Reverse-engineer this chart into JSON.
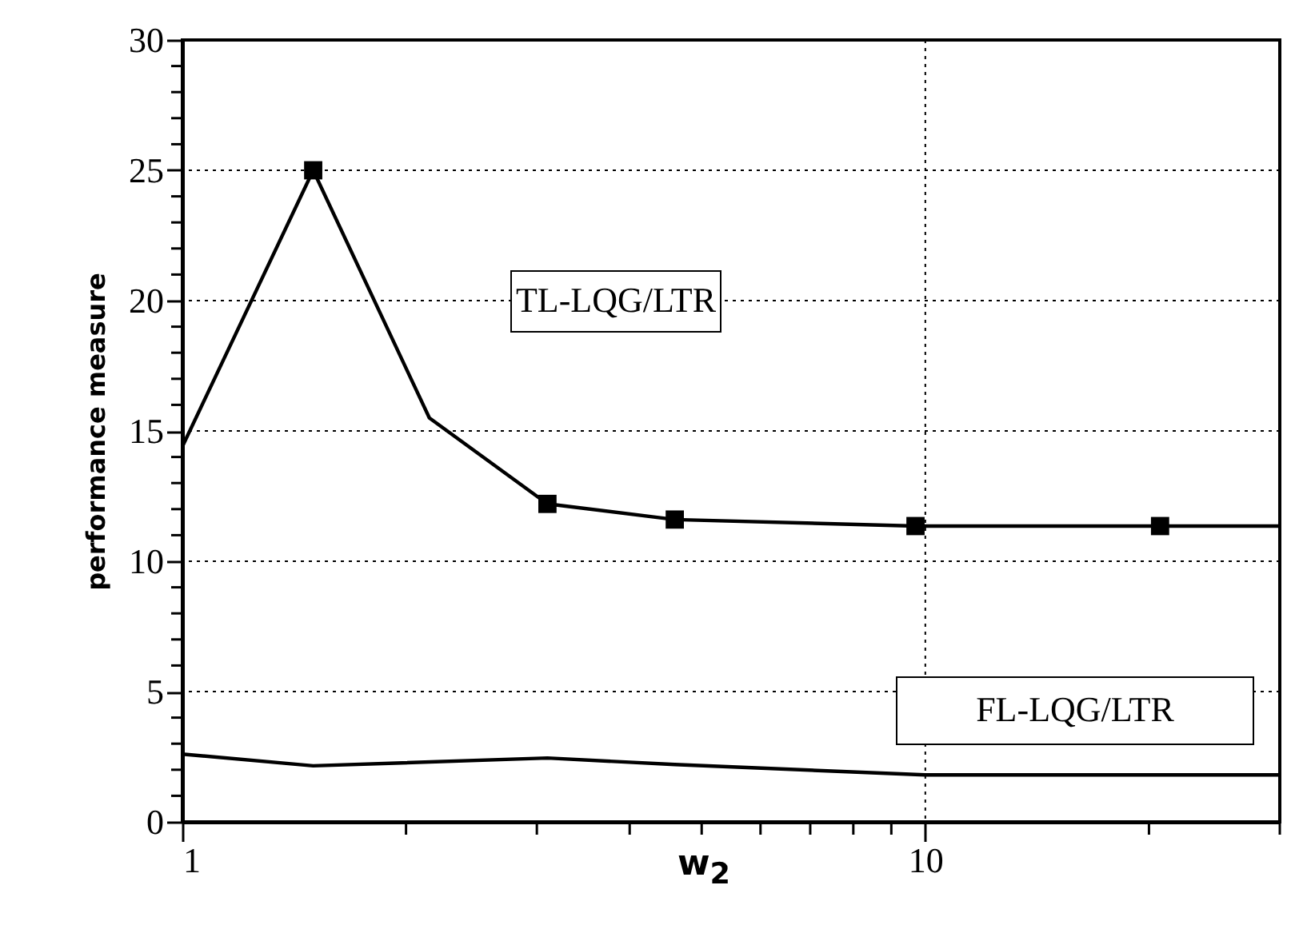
{
  "chart_data": {
    "type": "line",
    "xlabel": "w$_{2}$",
    "ylabel": "performance measure",
    "log": "x",
    "grid": true,
    "xlim": [
      1,
      30
    ],
    "ylim": [
      0,
      30
    ],
    "xticks": [
      1,
      {
        "value": 2,
        "label": null
      },
      {
        "value": 3,
        "label": null
      },
      {
        "value": 4,
        "label": null
      },
      {
        "value": 5,
        "label": null
      },
      {
        "value": 6,
        "label": null
      },
      {
        "value": 7,
        "label": null
      },
      {
        "value": 8,
        "label": null
      },
      {
        "value": 9,
        "label": null
      },
      10,
      {
        "value": 20,
        "label": null
      },
      {
        "value": 30,
        "label": null
      }
    ],
    "yticks": [
      0,
      {
        "value": 1,
        "label": null
      },
      {
        "value": 2,
        "label": null
      },
      {
        "value": 3,
        "label": null
      },
      {
        "value": 4,
        "label": null
      },
      5,
      {
        "value": 6,
        "label": null
      },
      {
        "value": 7,
        "label": null
      },
      {
        "value": 8,
        "label": null
      },
      {
        "value": 9,
        "label": null
      },
      10,
      {
        "value": 11,
        "label": null
      },
      {
        "value": 12,
        "label": null
      },
      {
        "value": 13,
        "label": null
      },
      {
        "value": 14,
        "label": null
      },
      15,
      {
        "value": 16,
        "label": null
      },
      {
        "value": 17,
        "label": null
      },
      {
        "value": 18,
        "label": null
      },
      {
        "value": 19,
        "label": null
      },
      20,
      {
        "value": 21,
        "label": null
      },
      {
        "value": 22,
        "label": null
      },
      {
        "value": 23,
        "label": null
      },
      {
        "value": 24,
        "label": null
      },
      25,
      {
        "value": 26,
        "label": null
      },
      {
        "value": 27,
        "label": null
      },
      {
        "value": 28,
        "label": null
      },
      {
        "value": 29,
        "label": null
      },
      30
    ],
    "series": [
      {
        "name": "TL-LQG/LTR",
        "color": "#000000",
        "marker": "none",
        "x": [
          1,
          1.5,
          2.15,
          3.1,
          4.6,
          9.7,
          20.7,
          30
        ],
        "values": [
          14.4,
          25,
          15.5,
          12.2,
          11.6,
          11.35,
          11.35,
          11.35
        ]
      },
      {
        "type": "scatter",
        "color": "#000000",
        "marker": "square",
        "x": [
          1.5,
          3.1,
          4.6,
          9.7,
          20.7
        ],
        "values": [
          25,
          12.2,
          11.6,
          11.35,
          11.35
        ]
      },
      {
        "name": "FL-LQG/LTR",
        "color": "#000000",
        "marker": "none",
        "x": [
          1,
          1.5,
          3.1,
          4.6,
          10,
          30
        ],
        "values": [
          2.6,
          2.15,
          2.45,
          2.2,
          1.8,
          1.8
        ]
      }
    ]
  }
}
